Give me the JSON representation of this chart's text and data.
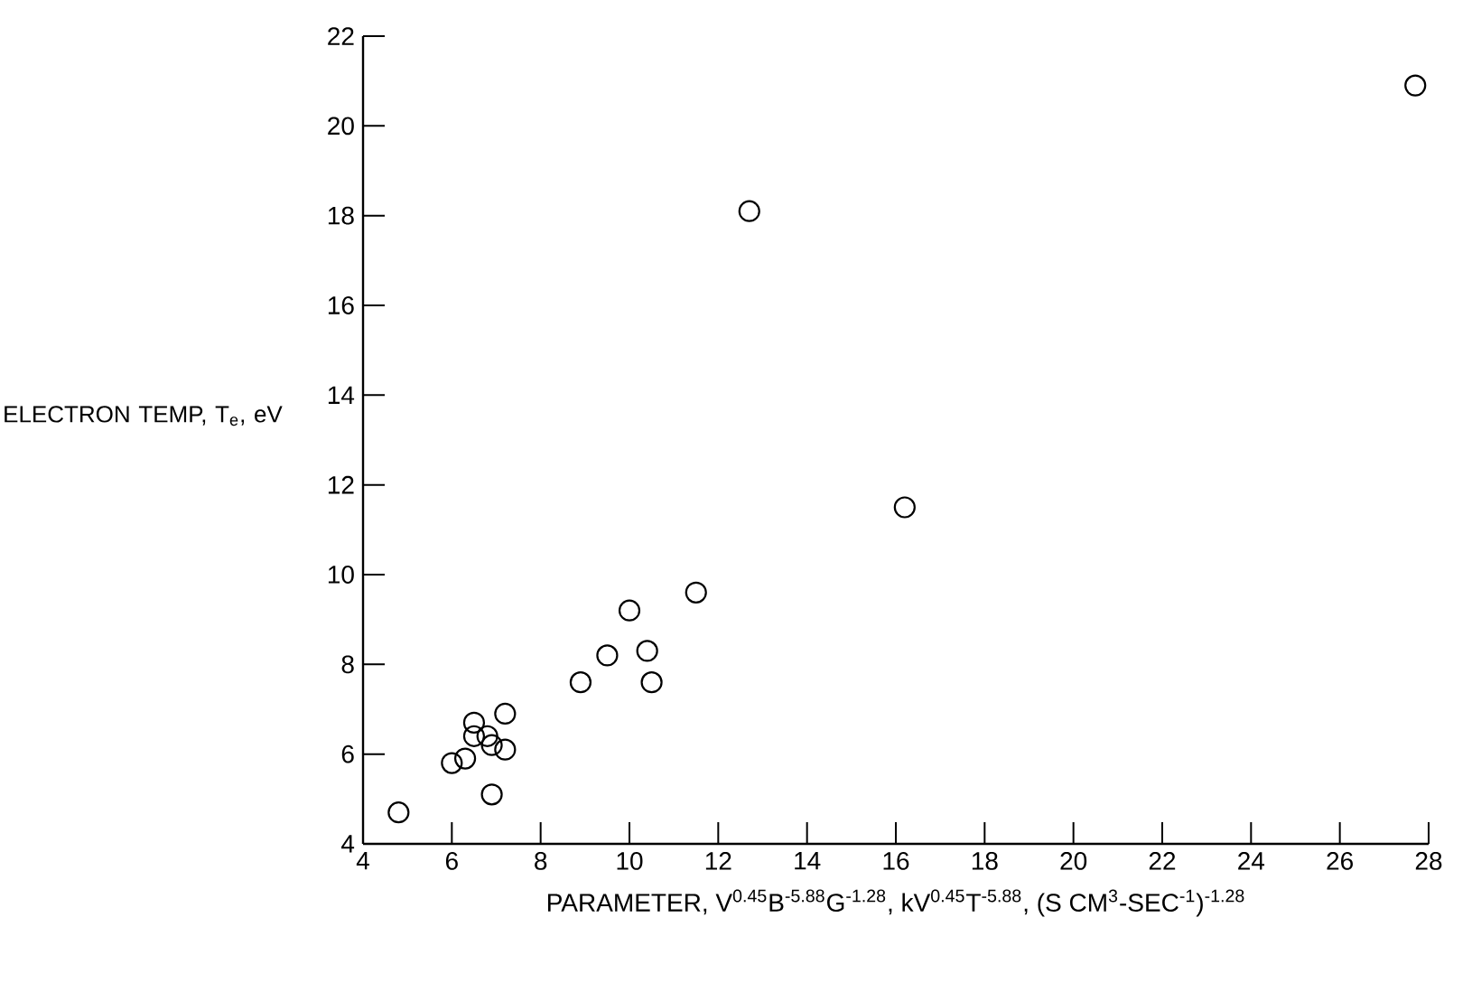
{
  "chart_data": {
    "type": "scatter",
    "xlabel": "PARAMETER, V$^{0.45}$B$^{-5.88}$G$^{-1.28}$, kV$^{0.45}$T$^{-5.88}$, (S CM$^{3}$-SEC$^{-1}$)$^{-1.28}$",
    "ylabel": "ELECTRON TEMP, T$_{e}$, eV",
    "series": [
      {
        "color": "#000000",
        "x": [
          4.8,
          6.0,
          6.3,
          6.5,
          6.5,
          6.8,
          6.9,
          7.2,
          7.2,
          6.9,
          8.9,
          9.5,
          10.0,
          10.4,
          10.5,
          11.5,
          16.2,
          12.7,
          27.7
        ],
        "values": [
          4.7,
          5.8,
          5.9,
          6.7,
          6.4,
          6.4,
          6.2,
          6.1,
          6.9,
          5.1,
          7.6,
          8.2,
          9.2,
          8.3,
          7.6,
          9.6,
          11.5,
          18.1,
          20.9
        ]
      }
    ],
    "marker": "circle",
    "xlim": [
      4,
      28
    ],
    "ylim": [
      4,
      22
    ],
    "xticks": [
      4,
      6,
      8,
      10,
      12,
      14,
      16,
      18,
      20,
      22,
      24,
      26,
      28
    ],
    "yticks": [
      4,
      6,
      8,
      10,
      12,
      14,
      16,
      18,
      20,
      22
    ]
  }
}
